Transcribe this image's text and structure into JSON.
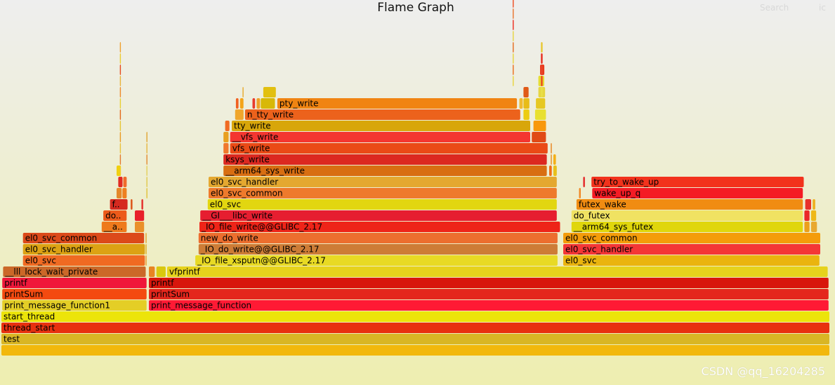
{
  "header": {
    "title": "Flame Graph",
    "search_label": "Search",
    "ic_label": "ic"
  },
  "watermark": "CSDN @qq_16204285",
  "chart_data": {
    "type": "flame",
    "frames": [
      {
        "name": "",
        "depth": 0,
        "start": 0,
        "width": 1000,
        "color": "#f2b80c"
      },
      {
        "name": "test",
        "depth": 1,
        "start": 0,
        "width": 1000,
        "color": "#d9b624"
      },
      {
        "name": "thread_start",
        "depth": 2,
        "start": 0,
        "width": 1000,
        "color": "#e8300f"
      },
      {
        "name": "start_thread",
        "depth": 3,
        "start": 0,
        "width": 1000,
        "color": "#ece40a"
      },
      {
        "name": "print_message_function1",
        "depth": 4,
        "start": 1,
        "width": 175,
        "color": "#e4ce26"
      },
      {
        "name": "print_message_function",
        "depth": 4,
        "start": 178,
        "width": 821,
        "color": "#ff1a34"
      },
      {
        "name": "printSum",
        "depth": 5,
        "start": 1,
        "width": 175,
        "color": "#f44a10"
      },
      {
        "name": "printSum",
        "depth": 5,
        "start": 178,
        "width": 821,
        "color": "#e4261c"
      },
      {
        "name": "printf",
        "depth": 6,
        "start": 1,
        "width": 175,
        "color": "#f0183a"
      },
      {
        "name": "printf",
        "depth": 6,
        "start": 178,
        "width": 821,
        "color": "#d8160c"
      },
      {
        "name": "__lll_lock_wait_private",
        "depth": 7,
        "start": 2,
        "width": 173,
        "color": "#cb6828"
      },
      {
        "name": "",
        "depth": 7,
        "start": 178,
        "width": 8,
        "color": "#e88422"
      },
      {
        "name": "",
        "depth": 7,
        "start": 187,
        "width": 12,
        "color": "#d9c80e"
      },
      {
        "name": "vfprintf",
        "depth": 7,
        "start": 200,
        "width": 798,
        "color": "#e6d21c"
      },
      {
        "name": "el0_svc",
        "depth": 8,
        "start": 26,
        "width": 148,
        "color": "#f06a22"
      },
      {
        "name": "",
        "depth": 8,
        "start": 174,
        "width": 2,
        "color": "#e8962a"
      },
      {
        "name": "_IO_file_xsputn@@GLIBC_2.17",
        "depth": 8,
        "start": 234,
        "width": 438,
        "color": "#e8da24"
      },
      {
        "name": "el0_svc",
        "depth": 8,
        "start": 678,
        "width": 310,
        "color": "#eab40e"
      },
      {
        "name": "el0_svc_handler",
        "depth": 9,
        "start": 26,
        "width": 148,
        "color": "#dca214"
      },
      {
        "name": "",
        "depth": 9,
        "start": 174,
        "width": 2,
        "color": "#e0ac20"
      },
      {
        "name": "_IO_do_write@@GLIBC_2.17",
        "depth": 9,
        "start": 238,
        "width": 434,
        "color": "#cd7c36"
      },
      {
        "name": "el0_svc_handler",
        "depth": 9,
        "start": 678,
        "width": 311,
        "color": "#f43636"
      },
      {
        "name": "el0_svc_common",
        "depth": 10,
        "start": 26,
        "width": 147,
        "color": "#dc4a1a"
      },
      {
        "name": "",
        "depth": 10,
        "start": 174,
        "width": 2,
        "color": "#e4a02a"
      },
      {
        "name": "new_do_write",
        "depth": 10,
        "start": 238,
        "width": 434,
        "color": "#ec6e2e"
      },
      {
        "name": "el0_svc_common",
        "depth": 10,
        "start": 678,
        "width": 311,
        "color": "#f49c0a"
      },
      {
        "name": "__a..",
        "depth": 11,
        "start": 121,
        "width": 31,
        "color": "#ee7a1c"
      },
      {
        "name": "",
        "depth": 11,
        "start": 161,
        "width": 12,
        "color": "#ea902a"
      },
      {
        "name": "_IO_file_write@@GLIBC_2.17",
        "depth": 11,
        "start": 239,
        "width": 436,
        "color": "#ee2418"
      },
      {
        "name": "__arm64_sys_futex",
        "depth": 11,
        "start": 688,
        "width": 280,
        "color": "#e0d60c"
      },
      {
        "name": "",
        "depth": 11,
        "start": 969,
        "width": 7,
        "color": "#eca01a"
      },
      {
        "name": "",
        "depth": 11,
        "start": 977,
        "width": 8,
        "color": "#e8a830"
      },
      {
        "name": "do..",
        "depth": 12,
        "start": 123,
        "width": 29,
        "color": "#ec5a1a"
      },
      {
        "name": "",
        "depth": 12,
        "start": 161,
        "width": 12,
        "color": "#e8202a"
      },
      {
        "name": "__GI___libc_write",
        "depth": 12,
        "start": 240,
        "width": 431,
        "color": "#e61e30"
      },
      {
        "name": "do_futex",
        "depth": 12,
        "start": 688,
        "width": 280,
        "color": "#f0e262"
      },
      {
        "name": "",
        "depth": 12,
        "start": 969,
        "width": 7,
        "color": "#ea2828"
      },
      {
        "name": "",
        "depth": 12,
        "start": 977,
        "width": 7,
        "color": "#eeb818"
      },
      {
        "name": "f..",
        "depth": 13,
        "start": 131,
        "width": 22,
        "color": "#d52a20"
      },
      {
        "name": "",
        "depth": 13,
        "start": 156,
        "width": 3,
        "color": "#dc5418"
      },
      {
        "name": "",
        "depth": 13,
        "start": 169,
        "width": 3,
        "color": "#e43430"
      },
      {
        "name": "el0_svc",
        "depth": 13,
        "start": 249,
        "width": 422,
        "color": "#e2d610"
      },
      {
        "name": "futex_wake",
        "depth": 13,
        "start": 694,
        "width": 274,
        "color": "#f08c12"
      },
      {
        "name": "",
        "depth": 13,
        "start": 970,
        "width": 8,
        "color": "#e8302a"
      },
      {
        "name": "",
        "depth": 13,
        "start": 979,
        "width": 4,
        "color": "#eeb020"
      },
      {
        "name": "",
        "depth": 14,
        "start": 139,
        "width": 7,
        "color": "#e4882a"
      },
      {
        "name": "",
        "depth": 14,
        "start": 146,
        "width": 6,
        "color": "#ee8020"
      },
      {
        "name": "el0_svc_common",
        "depth": 14,
        "start": 250,
        "width": 421,
        "color": "#ee7a2c"
      },
      {
        "name": "",
        "depth": 14,
        "start": 697,
        "width": 3,
        "color": "#f08a28"
      },
      {
        "name": "wake_up_q",
        "depth": 14,
        "start": 713,
        "width": 255,
        "color": "#f41c24"
      },
      {
        "name": "el0_svc_handler",
        "depth": 15,
        "start": 250,
        "width": 421,
        "color": "#e4a830"
      },
      {
        "name": "",
        "depth": 15,
        "start": 141,
        "width": 6,
        "color": "#e02a22"
      },
      {
        "name": "",
        "depth": 15,
        "start": 147,
        "width": 5,
        "color": "#f06a2c"
      },
      {
        "name": "",
        "depth": 15,
        "start": 702,
        "width": 3,
        "color": "#e42c2c"
      },
      {
        "name": "try_to_wake_up",
        "depth": 15,
        "start": 712,
        "width": 257,
        "color": "#f2321c"
      },
      {
        "name": "__arm64_sys_write",
        "depth": 16,
        "start": 268,
        "width": 391,
        "color": "#d86e12"
      },
      {
        "name": "",
        "depth": 16,
        "start": 661,
        "width": 4,
        "color": "#f06c16"
      },
      {
        "name": "",
        "depth": 16,
        "start": 666,
        "width": 5,
        "color": "#e8c01a"
      },
      {
        "name": "",
        "depth": 16,
        "start": 139,
        "width": 6,
        "color": "#f0d010"
      },
      {
        "name": "ksys_write",
        "depth": 17,
        "start": 268,
        "width": 391,
        "color": "#dc2820"
      },
      {
        "name": "",
        "depth": 17,
        "start": 663,
        "width": 2,
        "color": "#e88a18"
      },
      {
        "name": "",
        "depth": 17,
        "start": 666,
        "width": 4,
        "color": "#f4b018"
      },
      {
        "name": "vfs_write",
        "depth": 18,
        "start": 276,
        "width": 384,
        "color": "#ea4a16"
      },
      {
        "name": "",
        "depth": 18,
        "start": 268,
        "width": 7,
        "color": "#f0782c"
      },
      {
        "name": "",
        "depth": 18,
        "start": 663,
        "width": 2,
        "color": "#e88018"
      },
      {
        "name": "__vfs_write",
        "depth": 19,
        "start": 276,
        "width": 363,
        "color": "#f43630"
      },
      {
        "name": "",
        "depth": 19,
        "start": 268,
        "width": 7,
        "color": "#e8a020"
      },
      {
        "name": "",
        "depth": 19,
        "start": 640,
        "width": 18,
        "color": "#e04a16"
      },
      {
        "name": "tty_write",
        "depth": 20,
        "start": 278,
        "width": 361,
        "color": "#d8a60a"
      },
      {
        "name": "",
        "depth": 20,
        "start": 270,
        "width": 6,
        "color": "#f06a22"
      },
      {
        "name": "",
        "depth": 20,
        "start": 642,
        "width": 16,
        "color": "#f8980c"
      },
      {
        "name": "n_tty_write",
        "depth": 21,
        "start": 294,
        "width": 333,
        "color": "#ec621c"
      },
      {
        "name": "",
        "depth": 21,
        "start": 282,
        "width": 11,
        "color": "#f0a62c"
      },
      {
        "name": "",
        "depth": 21,
        "start": 630,
        "width": 8,
        "color": "#eccc12"
      },
      {
        "name": "",
        "depth": 21,
        "start": 644,
        "width": 14,
        "color": "#e8e030"
      },
      {
        "name": "pty_write",
        "depth": 22,
        "start": 333,
        "width": 290,
        "color": "#f08412"
      },
      {
        "name": "",
        "depth": 22,
        "start": 283,
        "width": 4,
        "color": "#f06020"
      },
      {
        "name": "",
        "depth": 22,
        "start": 288,
        "width": 5,
        "color": "#f4a418"
      },
      {
        "name": "",
        "depth": 22,
        "start": 303,
        "width": 4,
        "color": "#e83a2c"
      },
      {
        "name": "",
        "depth": 22,
        "start": 308,
        "width": 5,
        "color": "#f0a028"
      },
      {
        "name": "",
        "depth": 22,
        "start": 313,
        "width": 18,
        "color": "#d8b808"
      },
      {
        "name": "",
        "depth": 22,
        "start": 625,
        "width": 5,
        "color": "#f0ba30"
      },
      {
        "name": "",
        "depth": 22,
        "start": 630,
        "width": 8,
        "color": "#e8bc18"
      },
      {
        "name": "",
        "depth": 22,
        "start": 645,
        "width": 12,
        "color": "#e6c822"
      },
      {
        "name": "",
        "depth": 23,
        "start": 291,
        "width": 2,
        "color": "#e8a828"
      },
      {
        "name": "",
        "depth": 23,
        "start": 316,
        "width": 16,
        "color": "#e2c010"
      },
      {
        "name": "",
        "depth": 23,
        "start": 630,
        "width": 7,
        "color": "#e05a16"
      },
      {
        "name": "",
        "depth": 23,
        "start": 648,
        "width": 9,
        "color": "#e6d640"
      },
      {
        "name": "",
        "depth": 24,
        "start": 617,
        "width": 2,
        "color": "#e8d43a"
      },
      {
        "name": "",
        "depth": 24,
        "start": 648,
        "width": 8,
        "color": "#e6dc32"
      },
      {
        "name": "",
        "depth": 25,
        "start": 617,
        "width": 2,
        "color": "#ec6c18"
      },
      {
        "name": "",
        "depth": 25,
        "start": 650,
        "width": 6,
        "color": "#e83a1c"
      },
      {
        "name": "",
        "depth": 26,
        "start": 617,
        "width": 2,
        "color": "#e8d238"
      },
      {
        "name": "",
        "depth": 27,
        "start": 617,
        "width": 2,
        "color": "#e46a1c"
      },
      {
        "name": "",
        "depth": 28,
        "start": 617,
        "width": 2,
        "color": "#e6d43e"
      },
      {
        "name": "",
        "depth": 29,
        "start": 617,
        "width": 2,
        "color": "#ec2a1c"
      },
      {
        "name": "",
        "depth": 30,
        "start": 617,
        "width": 2,
        "color": "#e8722a"
      },
      {
        "name": "",
        "depth": 31,
        "start": 617,
        "width": 2,
        "color": "#ee4a1e"
      },
      {
        "name": "",
        "depth": 14,
        "start": 175,
        "width": 2,
        "color": "#e0c036"
      },
      {
        "name": "",
        "depth": 15,
        "start": 175,
        "width": 2,
        "color": "#e0c84a"
      },
      {
        "name": "",
        "depth": 16,
        "start": 175,
        "width": 2,
        "color": "#e4d05a"
      },
      {
        "name": "",
        "depth": 17,
        "start": 175,
        "width": 2,
        "color": "#e48a30"
      },
      {
        "name": "",
        "depth": 18,
        "start": 175,
        "width": 2,
        "color": "#e6b640"
      },
      {
        "name": "",
        "depth": 19,
        "start": 175,
        "width": 2,
        "color": "#e0a430"
      },
      {
        "name": "",
        "depth": 16,
        "start": 143,
        "width": 2,
        "color": "#f0cc2a"
      },
      {
        "name": "",
        "depth": 17,
        "start": 143,
        "width": 2,
        "color": "#e47a2c"
      },
      {
        "name": "",
        "depth": 18,
        "start": 143,
        "width": 2,
        "color": "#e8c23a"
      },
      {
        "name": "",
        "depth": 19,
        "start": 143,
        "width": 2,
        "color": "#ea9a22"
      },
      {
        "name": "",
        "depth": 20,
        "start": 143,
        "width": 2,
        "color": "#e6c634"
      },
      {
        "name": "",
        "depth": 21,
        "start": 143,
        "width": 2,
        "color": "#e46a1a"
      },
      {
        "name": "",
        "depth": 22,
        "start": 143,
        "width": 2,
        "color": "#e8d032"
      },
      {
        "name": "",
        "depth": 23,
        "start": 143,
        "width": 2,
        "color": "#ee8a2a"
      },
      {
        "name": "",
        "depth": 24,
        "start": 143,
        "width": 2,
        "color": "#e8b43a"
      },
      {
        "name": "",
        "depth": 25,
        "start": 143,
        "width": 2,
        "color": "#e64a1c"
      },
      {
        "name": "",
        "depth": 26,
        "start": 143,
        "width": 2,
        "color": "#eccc30"
      },
      {
        "name": "",
        "depth": 27,
        "start": 143,
        "width": 2,
        "color": "#f0a02c"
      },
      {
        "name": "",
        "depth": 23,
        "start": 651,
        "width": 3,
        "color": "#e8e048"
      },
      {
        "name": "",
        "depth": 24,
        "start": 651,
        "width": 3,
        "color": "#ec4c20"
      },
      {
        "name": "",
        "depth": 25,
        "start": 651,
        "width": 3,
        "color": "#e8442a"
      },
      {
        "name": "",
        "depth": 26,
        "start": 651,
        "width": 3,
        "color": "#e83224"
      },
      {
        "name": "",
        "depth": 27,
        "start": 651,
        "width": 3,
        "color": "#e8c838"
      }
    ]
  }
}
